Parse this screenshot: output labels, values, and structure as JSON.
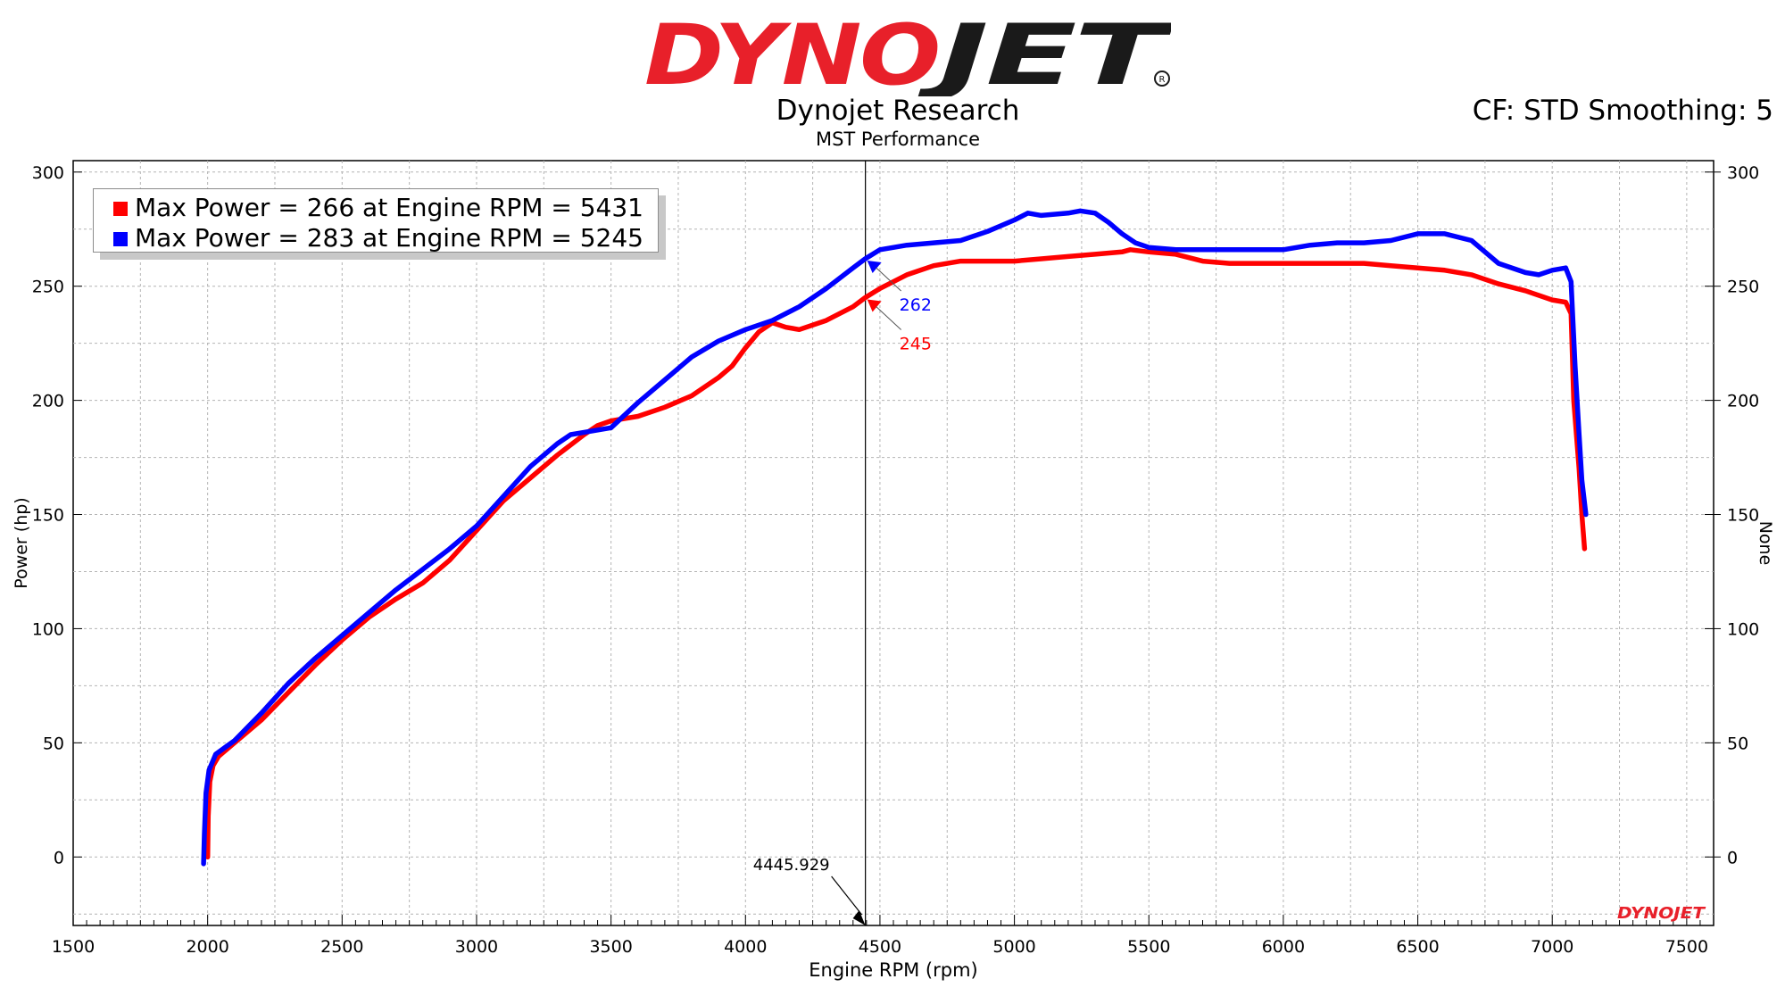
{
  "header": {
    "logo_text": "DYNOJET",
    "title": "Dynojet Research",
    "subtitle": "MST Performance",
    "cf_text": "CF: STD Smoothing: 5"
  },
  "legend": [
    {
      "text": "Max Power = 266 at Engine RPM = 5431",
      "color": "#ff0000"
    },
    {
      "text": "Max Power = 283 at Engine RPM = 5245",
      "color": "#0000ff"
    }
  ],
  "watermark_text": "DYNOJET",
  "chart_data": {
    "type": "line",
    "xlabel": "Engine RPM (rpm)",
    "ylabel": "Power (hp)",
    "y2label": "None",
    "xlim": [
      1500,
      7600
    ],
    "ylim": [
      -30,
      305
    ],
    "xticks": [
      1500,
      2000,
      2500,
      3000,
      3500,
      4000,
      4500,
      5000,
      5500,
      6000,
      6500,
      7000,
      7500
    ],
    "yticks": [
      0,
      50,
      100,
      150,
      200,
      250,
      300
    ],
    "grid": true,
    "legend_position": "top-left",
    "cursor": {
      "x": 4445.929,
      "label": "4445.929"
    },
    "series": [
      {
        "color": "#ff0000",
        "cursor_value": "245",
        "points": [
          [
            2000,
            0
          ],
          [
            2002,
            18
          ],
          [
            2008,
            33
          ],
          [
            2020,
            40
          ],
          [
            2040,
            44
          ],
          [
            2100,
            50
          ],
          [
            2200,
            60
          ],
          [
            2300,
            72
          ],
          [
            2400,
            84
          ],
          [
            2500,
            95
          ],
          [
            2600,
            105
          ],
          [
            2700,
            113
          ],
          [
            2800,
            120
          ],
          [
            2900,
            130
          ],
          [
            3000,
            143
          ],
          [
            3100,
            156
          ],
          [
            3200,
            166
          ],
          [
            3300,
            176
          ],
          [
            3400,
            185
          ],
          [
            3450,
            189
          ],
          [
            3500,
            191
          ],
          [
            3600,
            193
          ],
          [
            3700,
            197
          ],
          [
            3800,
            202
          ],
          [
            3900,
            210
          ],
          [
            3950,
            215
          ],
          [
            4000,
            223
          ],
          [
            4050,
            230
          ],
          [
            4100,
            234
          ],
          [
            4150,
            232
          ],
          [
            4200,
            231
          ],
          [
            4300,
            235
          ],
          [
            4400,
            241
          ],
          [
            4445,
            245
          ],
          [
            4500,
            249
          ],
          [
            4600,
            255
          ],
          [
            4700,
            259
          ],
          [
            4800,
            261
          ],
          [
            4900,
            261
          ],
          [
            5000,
            261
          ],
          [
            5100,
            262
          ],
          [
            5200,
            263
          ],
          [
            5300,
            264
          ],
          [
            5400,
            265
          ],
          [
            5431,
            266
          ],
          [
            5500,
            265
          ],
          [
            5600,
            264
          ],
          [
            5700,
            261
          ],
          [
            5800,
            260
          ],
          [
            5900,
            260
          ],
          [
            6000,
            260
          ],
          [
            6100,
            260
          ],
          [
            6200,
            260
          ],
          [
            6300,
            260
          ],
          [
            6400,
            259
          ],
          [
            6500,
            258
          ],
          [
            6600,
            257
          ],
          [
            6700,
            255
          ],
          [
            6800,
            251
          ],
          [
            6900,
            248
          ],
          [
            7000,
            244
          ],
          [
            7050,
            243
          ],
          [
            7070,
            238
          ],
          [
            7080,
            200
          ],
          [
            7100,
            170
          ],
          [
            7110,
            150
          ],
          [
            7120,
            135
          ]
        ]
      },
      {
        "color": "#0000ff",
        "cursor_value": "262",
        "points": [
          [
            1985,
            -3
          ],
          [
            1988,
            10
          ],
          [
            1994,
            28
          ],
          [
            2005,
            38
          ],
          [
            2030,
            45
          ],
          [
            2100,
            51
          ],
          [
            2200,
            63
          ],
          [
            2300,
            76
          ],
          [
            2400,
            87
          ],
          [
            2500,
            97
          ],
          [
            2600,
            107
          ],
          [
            2700,
            117
          ],
          [
            2800,
            126
          ],
          [
            2900,
            135
          ],
          [
            3000,
            145
          ],
          [
            3100,
            158
          ],
          [
            3200,
            171
          ],
          [
            3300,
            181
          ],
          [
            3350,
            185
          ],
          [
            3400,
            186
          ],
          [
            3500,
            188
          ],
          [
            3600,
            199
          ],
          [
            3700,
            209
          ],
          [
            3800,
            219
          ],
          [
            3900,
            226
          ],
          [
            4000,
            231
          ],
          [
            4100,
            235
          ],
          [
            4200,
            241
          ],
          [
            4300,
            249
          ],
          [
            4400,
            258
          ],
          [
            4445,
            262
          ],
          [
            4500,
            266
          ],
          [
            4600,
            268
          ],
          [
            4700,
            269
          ],
          [
            4800,
            270
          ],
          [
            4900,
            274
          ],
          [
            5000,
            279
          ],
          [
            5050,
            282
          ],
          [
            5100,
            281
          ],
          [
            5200,
            282
          ],
          [
            5245,
            283
          ],
          [
            5300,
            282
          ],
          [
            5350,
            278
          ],
          [
            5400,
            273
          ],
          [
            5450,
            269
          ],
          [
            5500,
            267
          ],
          [
            5600,
            266
          ],
          [
            5700,
            266
          ],
          [
            5800,
            266
          ],
          [
            5900,
            266
          ],
          [
            6000,
            266
          ],
          [
            6100,
            268
          ],
          [
            6200,
            269
          ],
          [
            6300,
            269
          ],
          [
            6400,
            270
          ],
          [
            6500,
            273
          ],
          [
            6600,
            273
          ],
          [
            6700,
            270
          ],
          [
            6750,
            265
          ],
          [
            6800,
            260
          ],
          [
            6900,
            256
          ],
          [
            6950,
            255
          ],
          [
            7000,
            257
          ],
          [
            7050,
            258
          ],
          [
            7070,
            252
          ],
          [
            7085,
            215
          ],
          [
            7100,
            185
          ],
          [
            7110,
            165
          ],
          [
            7125,
            150
          ]
        ]
      }
    ]
  }
}
